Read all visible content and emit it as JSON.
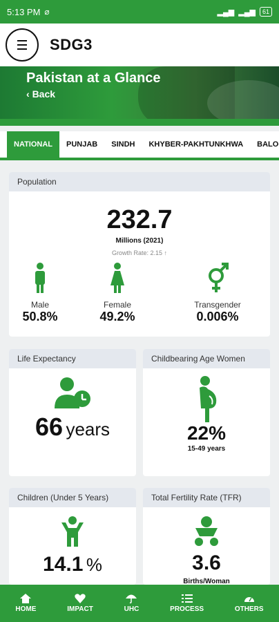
{
  "status_bar": {
    "time": "5:13 PM",
    "battery": "61"
  },
  "app_bar": {
    "title": "SDG3",
    "menu_icon": "hamburger-icon"
  },
  "banner": {
    "title": "Pakistan at a Glance",
    "back_label": "Back"
  },
  "tabs": [
    {
      "label": "NATIONAL",
      "active": true
    },
    {
      "label": "PUNJAB"
    },
    {
      "label": "SINDH"
    },
    {
      "label": "KHYBER-PAKHTUNKHWA"
    },
    {
      "label": "BALOCHIS"
    }
  ],
  "population": {
    "header": "Population",
    "value": "232.7",
    "unit": "Millions (2021)",
    "growth": "Growth Rate: 2.15",
    "male": {
      "label": "Male",
      "value": "50.8%"
    },
    "female": {
      "label": "Female",
      "value": "49.2%"
    },
    "transgender": {
      "label": "Transgender",
      "value": "0.006%"
    }
  },
  "life_expectancy": {
    "header": "Life Expectancy",
    "value": "66",
    "unit": "years"
  },
  "childbearing": {
    "header": "Childbearing Age Women",
    "value": "22%",
    "sub": "15-49 years"
  },
  "children": {
    "header": "Children (Under 5 Years)",
    "value": "14.1",
    "unit": "%"
  },
  "tfr": {
    "header": "Total Fertility Rate (TFR)",
    "value": "3.6",
    "sub": "Births/Woman"
  },
  "bottom_nav": [
    {
      "label": "HOME",
      "icon": "home-icon"
    },
    {
      "label": "IMPACT",
      "icon": "heart-pulse-icon"
    },
    {
      "label": "UHC",
      "icon": "umbrella-icon"
    },
    {
      "label": "PROCESS",
      "icon": "list-icon"
    },
    {
      "label": "OTHERS",
      "icon": "gauge-icon"
    }
  ],
  "colors": {
    "accent": "#2e9b3b",
    "card_header": "#e4e8ee",
    "background": "#eef0f1"
  }
}
